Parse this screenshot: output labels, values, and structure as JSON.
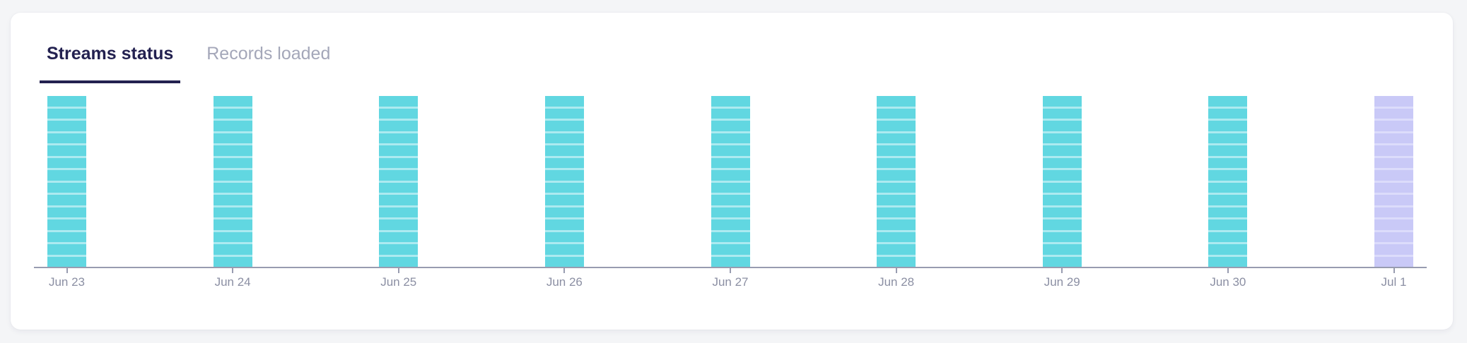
{
  "theme": {
    "page_bg": "#f4f5f7",
    "card_bg": "#ffffff",
    "active_tab_color": "#232150",
    "active_tab_underline": "#232150",
    "inactive_tab_color": "#a4a7b9"
  },
  "tabs": [
    {
      "label": "Streams status",
      "active": true
    },
    {
      "label": "Records loaded",
      "active": false
    }
  ],
  "chart_data": {
    "type": "bar",
    "title": "",
    "xlabel": "",
    "ylabel": "",
    "legend": "none",
    "grid": false,
    "categories": [
      "Jun 23",
      "Jun 24",
      "Jun 25",
      "Jun 26",
      "Jun 27",
      "Jun 28",
      "Jun 29",
      "Jun 30",
      "Jul 1"
    ],
    "values": [
      14,
      14,
      14,
      14,
      14,
      14,
      14,
      14,
      14
    ],
    "segments_per_bar": 14,
    "bar_statuses": [
      "success",
      "success",
      "success",
      "success",
      "success",
      "success",
      "success",
      "success",
      "pending"
    ],
    "colors": {
      "success": "#61d7e1",
      "success_separator": "#aceaf0",
      "pending": "#c9c9f7",
      "pending_separator": "#dcdcfb"
    },
    "axis_color": "#989cb0",
    "label_color": "#8b8fa3"
  }
}
